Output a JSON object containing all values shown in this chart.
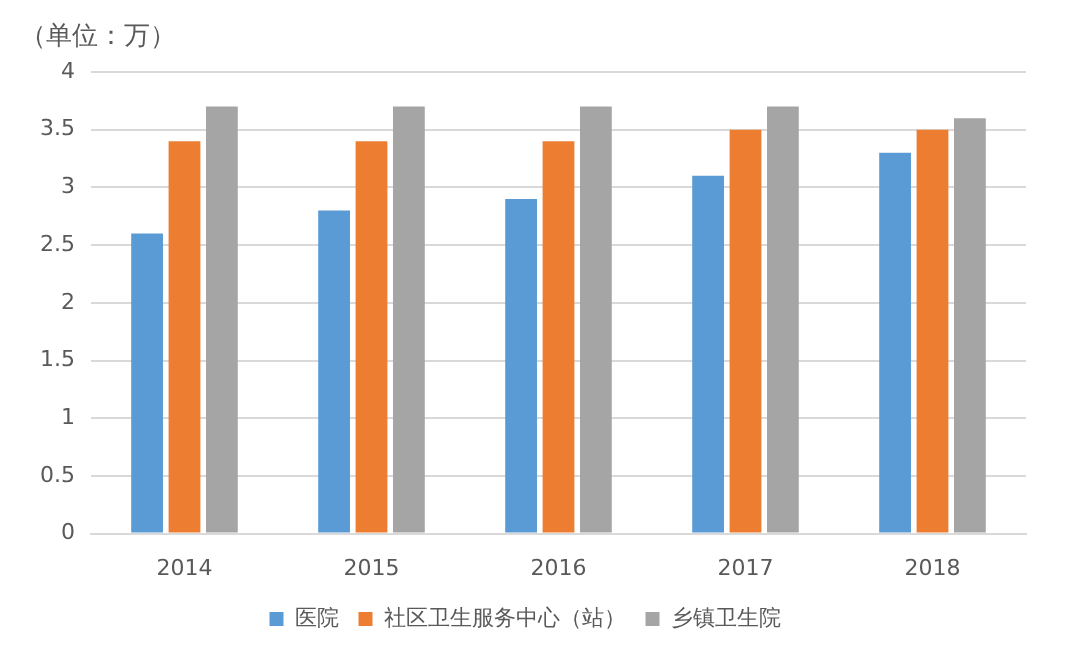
{
  "chart_data": {
    "type": "bar",
    "ylabel": "（单位：万）",
    "categories": [
      "2014",
      "2015",
      "2016",
      "2017",
      "2018"
    ],
    "series": [
      {
        "name": "医院",
        "color": "#5b9bd5",
        "values": [
          2.6,
          2.8,
          2.9,
          3.1,
          3.3
        ]
      },
      {
        "name": "社区卫生服务中心（站）",
        "color": "#ed7d31",
        "values": [
          3.4,
          3.4,
          3.4,
          3.5,
          3.5
        ]
      },
      {
        "name": "乡镇卫生院",
        "color": "#a5a5a5",
        "values": [
          3.7,
          3.7,
          3.7,
          3.7,
          3.6
        ]
      }
    ],
    "ylim": [
      0,
      4
    ],
    "yticks": [
      0,
      0.5,
      1,
      1.5,
      2,
      2.5,
      3,
      3.5,
      4
    ],
    "grid": "y",
    "legend": "bottom"
  }
}
